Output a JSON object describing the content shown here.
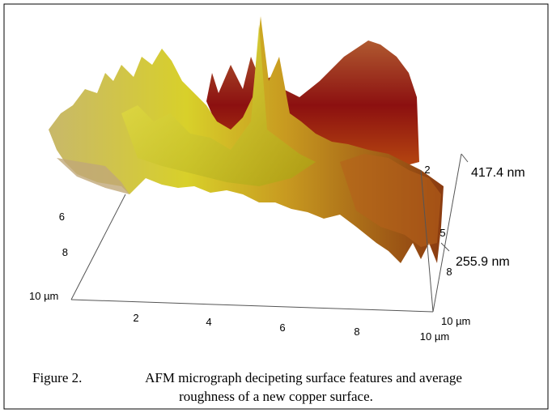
{
  "figure": {
    "z_labels": {
      "top": "417.4 nm",
      "middle": "255.9 nm"
    },
    "left_axis": {
      "ticks": [
        6,
        8
      ],
      "end_label": "10 µm"
    },
    "bottom_axis": {
      "ticks": [
        2,
        4,
        6,
        8
      ],
      "end_label": "10 µm"
    },
    "right_axis": {
      "ticks": [
        2,
        5,
        8
      ],
      "end_label": "10 µm"
    },
    "caption": {
      "label": "Figure 2.",
      "lines": [
        "AFM micrograph decipeting surface features and average",
        "roughness of a new copper surface."
      ]
    }
  }
}
